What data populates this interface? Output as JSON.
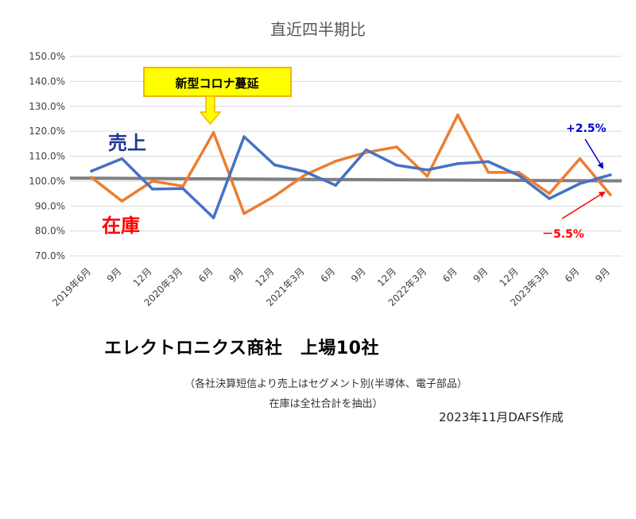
{
  "chart_data": {
    "type": "line",
    "title": "直近四半期比",
    "categories": [
      "2019年6月",
      "9月",
      "12月",
      "2020年3月",
      "6月",
      "9月",
      "12月",
      "2021年3月",
      "6月",
      "9月",
      "12月",
      "2022年3月",
      "6月",
      "9月",
      "12月",
      "2023年3月",
      "6月",
      "9月"
    ],
    "ylim": [
      70,
      150
    ],
    "yticks": [
      "70.0%",
      "80.0%",
      "90.0%",
      "100.0%",
      "110.0%",
      "120.0%",
      "130.0%",
      "140.0%",
      "150.0%"
    ],
    "grid": true,
    "series": [
      {
        "name": "売上",
        "color": "#4472C4",
        "values": [
          104.0,
          109.0,
          96.8,
          97.0,
          85.3,
          117.8,
          106.5,
          103.8,
          98.3,
          112.5,
          106.4,
          104.5,
          107.0,
          107.8,
          102.3,
          93.0,
          99.0,
          102.5
        ]
      },
      {
        "name": "在庫",
        "color": "#ED7D31",
        "values": [
          101.5,
          92.0,
          100.0,
          98.0,
          119.5,
          87.0,
          94.0,
          102.5,
          108.0,
          111.5,
          113.7,
          102.0,
          126.5,
          103.5,
          103.5,
          95.0,
          109.0,
          94.5
        ]
      }
    ],
    "reference_line": {
      "color": "#7F7F7F",
      "start": 101.2,
      "end": 100.1
    },
    "annotations": {
      "covid": "新型コロナ蔓延",
      "sales_change": "+2.5%",
      "inventory_change": "－5.5%"
    },
    "colors": {
      "sales_label": "#1F3A93",
      "inventory_label": "#FF0000",
      "callout_bg": "#FFFF00",
      "callout_border": "#F4B400",
      "plus_arrow": "#0000CC",
      "minus_arrow": "#FF0000",
      "grid": "#D9D9D9",
      "title": "#595959"
    }
  },
  "subtitle": "エレクトロニクス商社　上場10社",
  "note_line1": "（各社決算短信より売上はセグメント別(半導体、電子部品）",
  "note_line2": "在庫は全社合計を抽出）",
  "credit": "2023年11月DAFS作成"
}
